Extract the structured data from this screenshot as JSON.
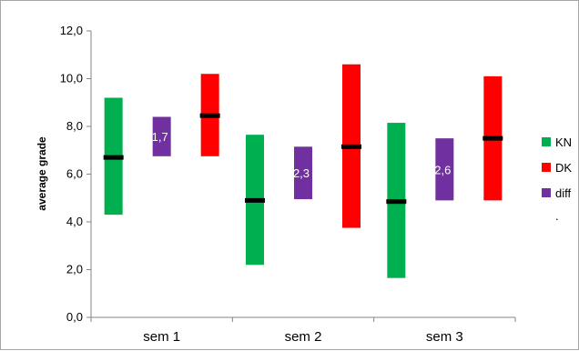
{
  "chart_data": {
    "type": "bar",
    "title": "",
    "xlabel": "",
    "ylabel": "average grade",
    "ylim": [
      0,
      12
    ],
    "ytick_step": 2,
    "ytick_labels": [
      "0,0",
      "2,0",
      "4,0",
      "6,0",
      "8,0",
      "10,0",
      "12,0"
    ],
    "grid": false,
    "legend_position": "right",
    "categories": [
      "sem 1",
      "sem 2",
      "sem 3"
    ],
    "series": [
      {
        "name": "KN",
        "color": "#00b050",
        "low": [
          4.3,
          2.2,
          1.65
        ],
        "high": [
          9.2,
          7.65,
          8.15
        ],
        "mean": [
          6.7,
          4.9,
          4.85
        ]
      },
      {
        "name": "diff",
        "color": "#7030a0",
        "low": [
          6.75,
          4.95,
          4.9
        ],
        "high": [
          8.4,
          7.15,
          7.5
        ],
        "labels": [
          "1,7",
          "2,3",
          "2,6"
        ]
      },
      {
        "name": "DK",
        "color": "#ff0000",
        "low": [
          6.75,
          3.75,
          4.9
        ],
        "high": [
          10.2,
          10.6,
          10.1
        ],
        "mean": [
          8.45,
          7.15,
          7.5
        ]
      }
    ],
    "legend": [
      {
        "name": "KN",
        "color": "#00b050"
      },
      {
        "name": "DK",
        "color": "#ff0000"
      },
      {
        "name": "diff",
        "color": "#7030a0"
      }
    ],
    "legend_extra": "."
  }
}
